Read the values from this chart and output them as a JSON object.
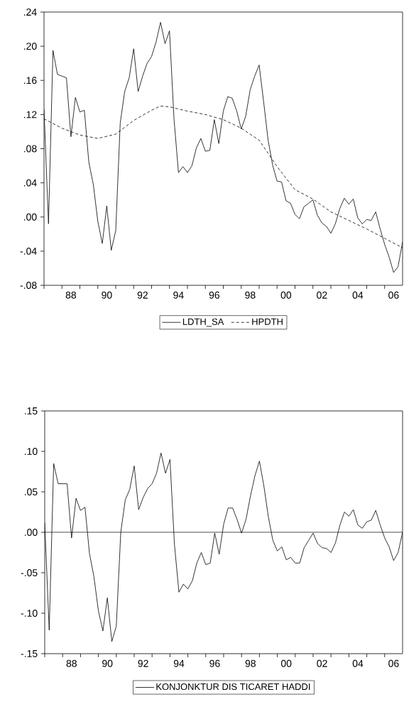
{
  "chart_data": [
    {
      "type": "line",
      "legend": "bottom",
      "x": [
        1986.5,
        1986.75,
        1987,
        1987.25,
        1987.5,
        1987.75,
        1988,
        1988.25,
        1988.5,
        1988.75,
        1989,
        1989.25,
        1989.5,
        1989.75,
        1990,
        1990.25,
        1990.5,
        1990.75,
        1991,
        1991.25,
        1991.5,
        1991.75,
        1992,
        1992.25,
        1992.5,
        1992.75,
        1993,
        1993.25,
        1993.5,
        1993.75,
        1994,
        1994.25,
        1994.5,
        1994.75,
        1995,
        1995.25,
        1995.5,
        1995.75,
        1996,
        1996.25,
        1996.5,
        1996.75,
        1997,
        1997.25,
        1997.5,
        1997.75,
        1998,
        1998.25,
        1998.5,
        1998.75,
        1999,
        1999.25,
        1999.5,
        1999.75,
        2000,
        2000.25,
        2000.5,
        2000.75,
        2001,
        2001.25,
        2001.5,
        2001.75,
        2002,
        2002.25,
        2002.5,
        2002.75,
        2003,
        2003.25,
        2003.5,
        2003.75,
        2004,
        2004.25,
        2004.5,
        2004.75,
        2005,
        2005.25,
        2005.5,
        2005.75,
        2006,
        2006.25,
        2006.5
      ],
      "series": [
        {
          "name": "LDTH_SA",
          "color": "#000000",
          "line_style": "solid",
          "values": [
            0.126,
            -0.008,
            0.195,
            0.167,
            0.165,
            0.163,
            0.094,
            0.14,
            0.123,
            0.125,
            0.064,
            0.038,
            -0.005,
            -0.031,
            0.013,
            -0.039,
            -0.016,
            0.11,
            0.147,
            0.163,
            0.197,
            0.147,
            0.165,
            0.18,
            0.188,
            0.205,
            0.228,
            0.203,
            0.218,
            0.115,
            0.052,
            0.059,
            0.052,
            0.06,
            0.081,
            0.092,
            0.077,
            0.078,
            0.114,
            0.086,
            0.124,
            0.141,
            0.139,
            0.124,
            0.103,
            0.118,
            0.149,
            0.165,
            0.178,
            0.135,
            0.09,
            0.061,
            0.042,
            0.041,
            0.019,
            0.016,
            0.003,
            -0.002,
            0.012,
            0.016,
            0.02,
            0.002,
            -0.007,
            -0.011,
            -0.019,
            -0.008,
            0.01,
            0.022,
            0.015,
            0.021,
            -0.001,
            -0.008,
            -0.003,
            -0.004,
            0.006,
            -0.014,
            -0.032,
            -0.047,
            -0.065,
            -0.058,
            -0.029
          ]
        },
        {
          "name": "HPDTH",
          "color": "#000000",
          "line_style": "dashed",
          "x": [
            1986.5,
            1987.5,
            1988.5,
            1989.5,
            1990.5,
            1991.5,
            1992.5,
            1993,
            1993.5,
            1994.5,
            1995.5,
            1996.5,
            1997.5,
            1998.5,
            1999.5,
            2000.5,
            2001.5,
            2002.5,
            2003.5,
            2004.5,
            2005.5,
            2006.5
          ],
          "values": [
            0.115,
            0.104,
            0.096,
            0.092,
            0.097,
            0.113,
            0.125,
            0.13,
            0.129,
            0.124,
            0.12,
            0.114,
            0.104,
            0.09,
            0.059,
            0.032,
            0.021,
            0.006,
            -0.004,
            -0.014,
            -0.025,
            -0.036
          ]
        }
      ],
      "xlim": [
        1986.5,
        2006.5
      ],
      "xticks": [
        {
          "value": 1986.5,
          "label": null
        },
        {
          "value": 1987.5,
          "label": null
        },
        {
          "value": 1988.5,
          "label": null
        },
        {
          "value": 1989.5,
          "label": null
        },
        {
          "value": 1990.5,
          "label": null
        },
        {
          "value": 1991.5,
          "label": null
        },
        {
          "value": 1992.5,
          "label": null
        },
        {
          "value": 1993.5,
          "label": null
        },
        {
          "value": 1994.5,
          "label": null
        },
        {
          "value": 1995.5,
          "label": null
        },
        {
          "value": 1996.5,
          "label": null
        },
        {
          "value": 1997.5,
          "label": null
        },
        {
          "value": 1998.5,
          "label": null
        },
        {
          "value": 1999.5,
          "label": null
        },
        {
          "value": 2000.5,
          "label": null
        },
        {
          "value": 2001.5,
          "label": null
        },
        {
          "value": 2002.5,
          "label": null
        },
        {
          "value": 2003.5,
          "label": null
        },
        {
          "value": 2004.5,
          "label": null
        },
        {
          "value": 2005.5,
          "label": null
        },
        {
          "value": 1988,
          "label": "88"
        },
        {
          "value": 1990,
          "label": "90"
        },
        {
          "value": 1992,
          "label": "92"
        },
        {
          "value": 1994,
          "label": "94"
        },
        {
          "value": 1996,
          "label": "96"
        },
        {
          "value": 1998,
          "label": "98"
        },
        {
          "value": 2000,
          "label": "00"
        },
        {
          "value": 2002,
          "label": "02"
        },
        {
          "value": 2004,
          "label": "04"
        },
        {
          "value": 2006,
          "label": "06"
        }
      ],
      "ylim": [
        -0.08,
        0.24
      ],
      "yticks": [
        {
          "value": -0.08,
          "label": "-.08"
        },
        {
          "value": -0.04,
          "label": "-.04"
        },
        {
          "value": 0,
          "label": ".00"
        },
        {
          "value": 0.04,
          "label": ".04"
        },
        {
          "value": 0.08,
          "label": ".08"
        },
        {
          "value": 0.12,
          "label": ".12"
        },
        {
          "value": 0.16,
          "label": ".16"
        },
        {
          "value": 0.2,
          "label": ".20"
        },
        {
          "value": 0.24,
          "label": ".24"
        }
      ]
    },
    {
      "type": "line",
      "legend": "bottom",
      "x": [
        1986.5,
        1986.75,
        1987,
        1987.25,
        1987.5,
        1987.75,
        1988,
        1988.25,
        1988.5,
        1988.75,
        1989,
        1989.25,
        1989.5,
        1989.75,
        1990,
        1990.25,
        1990.5,
        1990.75,
        1991,
        1991.25,
        1991.5,
        1991.75,
        1992,
        1992.25,
        1992.5,
        1992.75,
        1993,
        1993.25,
        1993.5,
        1993.75,
        1994,
        1994.25,
        1994.5,
        1994.75,
        1995,
        1995.25,
        1995.5,
        1995.75,
        1996,
        1996.25,
        1996.5,
        1996.75,
        1997,
        1997.25,
        1997.5,
        1997.75,
        1998,
        1998.25,
        1998.5,
        1998.75,
        1999,
        1999.25,
        1999.5,
        1999.75,
        2000,
        2000.25,
        2000.5,
        2000.75,
        2001,
        2001.25,
        2001.5,
        2001.75,
        2002,
        2002.25,
        2002.5,
        2002.75,
        2003,
        2003.25,
        2003.5,
        2003.75,
        2004,
        2004.25,
        2004.5,
        2004.75,
        2005,
        2005.25,
        2005.5,
        2005.75,
        2006,
        2006.25,
        2006.5
      ],
      "series": [
        {
          "name": "KONJONKTUR DIS TICARET HADDI",
          "color": "#000000",
          "line_style": "solid",
          "values": [
            0.012,
            -0.121,
            0.085,
            0.06,
            0.06,
            0.06,
            -0.007,
            0.042,
            0.027,
            0.031,
            -0.026,
            -0.055,
            -0.097,
            -0.122,
            -0.081,
            -0.135,
            -0.116,
            0.0,
            0.04,
            0.053,
            0.082,
            0.028,
            0.043,
            0.054,
            0.06,
            0.073,
            0.098,
            0.073,
            0.09,
            -0.015,
            -0.074,
            -0.064,
            -0.07,
            -0.06,
            -0.038,
            -0.025,
            -0.04,
            -0.038,
            -0.001,
            -0.027,
            0.01,
            0.03,
            0.03,
            0.016,
            -0.001,
            0.016,
            0.045,
            0.07,
            0.088,
            0.057,
            0.019,
            -0.01,
            -0.023,
            -0.018,
            -0.034,
            -0.031,
            -0.038,
            -0.038,
            -0.019,
            -0.01,
            -0.001,
            -0.014,
            -0.019,
            -0.02,
            -0.025,
            -0.013,
            0.009,
            0.025,
            0.02,
            0.028,
            0.009,
            0.005,
            0.013,
            0.015,
            0.027,
            0.009,
            -0.007,
            -0.018,
            -0.035,
            -0.025,
            0.0
          ]
        }
      ],
      "ref_lines": [
        {
          "axis": "y",
          "value": 0,
          "color": "#000000"
        }
      ],
      "xlim": [
        1986.5,
        2006.5
      ],
      "xticks": [
        {
          "value": 1986.5,
          "label": null
        },
        {
          "value": 1987.5,
          "label": null
        },
        {
          "value": 1988.5,
          "label": null
        },
        {
          "value": 1989.5,
          "label": null
        },
        {
          "value": 1990.5,
          "label": null
        },
        {
          "value": 1991.5,
          "label": null
        },
        {
          "value": 1992.5,
          "label": null
        },
        {
          "value": 1993.5,
          "label": null
        },
        {
          "value": 1994.5,
          "label": null
        },
        {
          "value": 1995.5,
          "label": null
        },
        {
          "value": 1996.5,
          "label": null
        },
        {
          "value": 1997.5,
          "label": null
        },
        {
          "value": 1998.5,
          "label": null
        },
        {
          "value": 1999.5,
          "label": null
        },
        {
          "value": 2000.5,
          "label": null
        },
        {
          "value": 2001.5,
          "label": null
        },
        {
          "value": 2002.5,
          "label": null
        },
        {
          "value": 2003.5,
          "label": null
        },
        {
          "value": 2004.5,
          "label": null
        },
        {
          "value": 2005.5,
          "label": null
        },
        {
          "value": 1988,
          "label": "88"
        },
        {
          "value": 1990,
          "label": "90"
        },
        {
          "value": 1992,
          "label": "92"
        },
        {
          "value": 1994,
          "label": "94"
        },
        {
          "value": 1996,
          "label": "96"
        },
        {
          "value": 1998,
          "label": "98"
        },
        {
          "value": 2000,
          "label": "00"
        },
        {
          "value": 2002,
          "label": "02"
        },
        {
          "value": 2004,
          "label": "04"
        },
        {
          "value": 2006,
          "label": "06"
        }
      ],
      "ylim": [
        -0.15,
        0.15
      ],
      "yticks": [
        {
          "value": -0.15,
          "label": "-.15"
        },
        {
          "value": -0.1,
          "label": "-.10"
        },
        {
          "value": -0.05,
          "label": "-.05"
        },
        {
          "value": 0,
          "label": ".00"
        },
        {
          "value": 0.05,
          "label": ".05"
        },
        {
          "value": 0.1,
          "label": ".10"
        },
        {
          "value": 0.15,
          "label": ".15"
        }
      ]
    }
  ]
}
